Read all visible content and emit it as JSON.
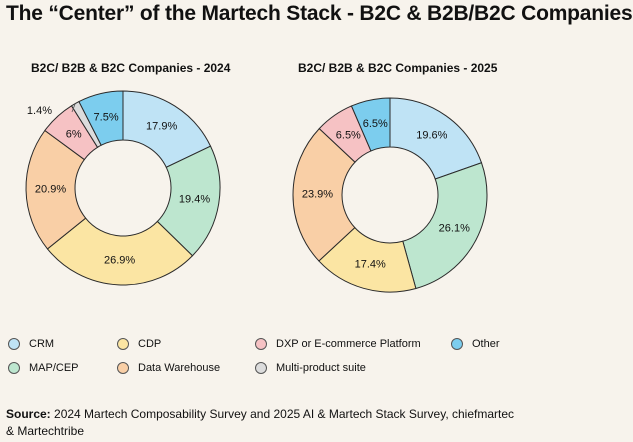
{
  "title": "The “Center” of the Martech Stack - B2C & B2B/B2C Companies",
  "colors": {
    "CRM": "#bfe3f5",
    "MAP/CEP": "#bde6cf",
    "CDP": "#fbe5a3",
    "Data Warehouse": "#f9cfa6",
    "DXP or E-commerce Platform": "#f6c2c4",
    "Multi-product suite": "#dcdcdc",
    "Other": "#7ccdee"
  },
  "legend": [
    {
      "label": "CRM",
      "color": "#bfe3f5"
    },
    {
      "label": "CDP",
      "color": "#fbe5a3"
    },
    {
      "label": "DXP or E-commerce Platform",
      "color": "#f6c2c4"
    },
    {
      "label": "Other",
      "color": "#7ccdee"
    },
    {
      "label": "MAP/CEP",
      "color": "#bde6cf"
    },
    {
      "label": "Data Warehouse",
      "color": "#f9cfa6"
    },
    {
      "label": "Multi-product suite",
      "color": "#dcdcdc"
    }
  ],
  "source": {
    "label": "Source:",
    "text": "2024 Martech Composability Survey and 2025 AI & Martech Stack Survey, chiefmartec & Martechtribe"
  },
  "chart_data": [
    {
      "type": "pie",
      "title": "B2C/ B2B & B2C Companies - 2024",
      "categories": [
        "CRM",
        "MAP/CEP",
        "CDP",
        "Data Warehouse",
        "DXP or E-commerce Platform",
        "Multi-product suite",
        "Other"
      ],
      "values": [
        17.9,
        19.4,
        26.9,
        20.9,
        6,
        1.4,
        7.5
      ],
      "labels": [
        "17.9%",
        "19.4%",
        "26.9%",
        "20.9%",
        "6%",
        "1.4%",
        "7.5%"
      ]
    },
    {
      "type": "pie",
      "title": "B2C/ B2B & B2C Companies - 2025",
      "categories": [
        "CRM",
        "MAP/CEP",
        "CDP",
        "Data Warehouse",
        "DXP or E-commerce Platform",
        "Other"
      ],
      "values": [
        19.6,
        26.1,
        17.4,
        23.9,
        6.5,
        6.5
      ],
      "labels": [
        "19.6%",
        "26.1%",
        "17.4%",
        "23.9%",
        "6.5%",
        "6.5%"
      ]
    }
  ]
}
